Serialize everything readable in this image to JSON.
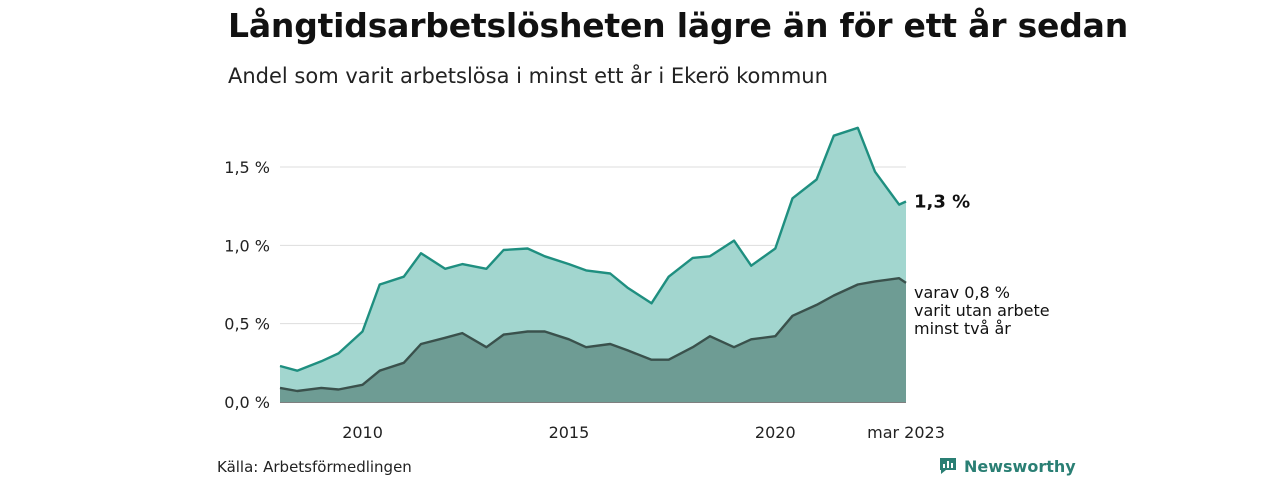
{
  "title": "Långtidsarbetslösheten lägre än för ett år sedan",
  "subtitle": "Andel som varit arbetslösa i minst ett år i Ekerö kommun",
  "source": "Källa: Arbetsförmedlingen",
  "brand": {
    "label": "Newsworthy",
    "icon": "newsworthy-logo-icon",
    "color": "#2a7f74"
  },
  "chart_data": {
    "type": "area",
    "x_ticks": [
      "2010",
      "2015",
      "2020",
      "mar 2023"
    ],
    "y_ticks": [
      "0,0 %",
      "0,5 %",
      "1,0 %",
      "1,5 %"
    ],
    "ylim": [
      0,
      1.8
    ],
    "grid": true,
    "x_range": [
      "2008-01",
      "2023-03"
    ],
    "annotations": {
      "total_label": "1,3 %",
      "longterm_label_lines": [
        "varav 0,8 %",
        "varit utan arbete",
        "minst två år"
      ]
    },
    "colors": {
      "total_line": "#1f8f80",
      "total_fill": "#a2d6cf",
      "longterm_line": "#3a514c",
      "longterm_fill": "#6e9c94",
      "grid": "#dddddd"
    },
    "series": [
      {
        "id": "total",
        "x": [
          "2008-01",
          "2008-06",
          "2009-01",
          "2009-06",
          "2010-01",
          "2010-06",
          "2011-01",
          "2011-06",
          "2012-01",
          "2012-06",
          "2013-01",
          "2013-06",
          "2014-01",
          "2014-06",
          "2015-01",
          "2015-06",
          "2016-01",
          "2016-06",
          "2017-01",
          "2017-06",
          "2018-01",
          "2018-06",
          "2019-01",
          "2019-06",
          "2020-01",
          "2020-06",
          "2021-01",
          "2021-06",
          "2022-01",
          "2022-06",
          "2023-01",
          "2023-03"
        ],
        "values": [
          0.23,
          0.2,
          0.26,
          0.31,
          0.45,
          0.75,
          0.8,
          0.95,
          0.85,
          0.88,
          0.85,
          0.97,
          0.98,
          0.93,
          0.88,
          0.84,
          0.82,
          0.73,
          0.63,
          0.8,
          0.92,
          0.93,
          1.03,
          0.87,
          0.98,
          1.3,
          1.42,
          1.7,
          1.75,
          1.47,
          1.26,
          1.28
        ]
      },
      {
        "id": "longterm",
        "x": [
          "2008-01",
          "2008-06",
          "2009-01",
          "2009-06",
          "2010-01",
          "2010-06",
          "2011-01",
          "2011-06",
          "2012-01",
          "2012-06",
          "2013-01",
          "2013-06",
          "2014-01",
          "2014-06",
          "2015-01",
          "2015-06",
          "2016-01",
          "2016-06",
          "2017-01",
          "2017-06",
          "2018-01",
          "2018-06",
          "2019-01",
          "2019-06",
          "2020-01",
          "2020-06",
          "2021-01",
          "2021-06",
          "2022-01",
          "2022-06",
          "2023-01",
          "2023-03"
        ],
        "values": [
          0.09,
          0.07,
          0.09,
          0.08,
          0.11,
          0.2,
          0.25,
          0.37,
          0.41,
          0.44,
          0.35,
          0.43,
          0.45,
          0.45,
          0.4,
          0.35,
          0.37,
          0.33,
          0.27,
          0.27,
          0.35,
          0.42,
          0.35,
          0.4,
          0.42,
          0.55,
          0.62,
          0.68,
          0.75,
          0.77,
          0.79,
          0.76
        ]
      }
    ]
  }
}
